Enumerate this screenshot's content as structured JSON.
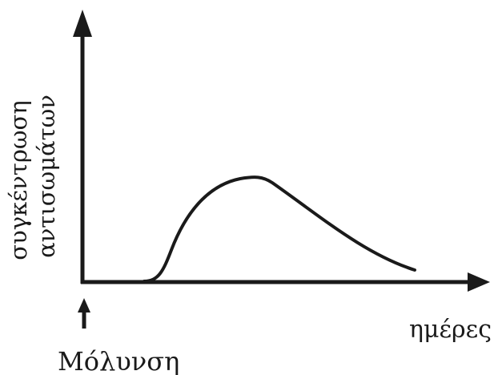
{
  "figure": {
    "y_axis_label_line1": "συγκέντρωση",
    "y_axis_label_line2": "αντισωμάτων",
    "x_axis_label": "ημέρες",
    "event_label": "Μόλυνση"
  },
  "colors": {
    "ink": "#1a1a1a",
    "background": "#ffffff"
  },
  "icons": {
    "infection_marker": "up-arrow-icon"
  }
}
